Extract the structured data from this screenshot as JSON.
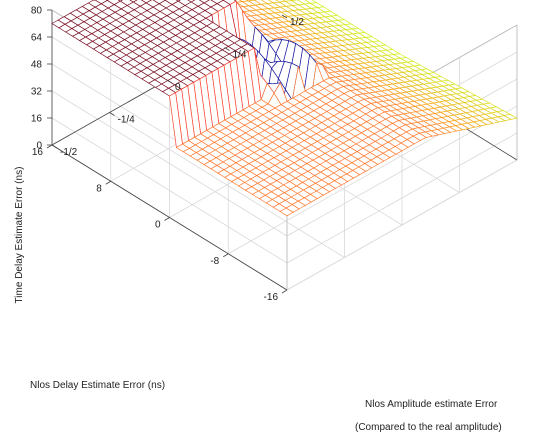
{
  "chart_data": {
    "type": "surface",
    "title": "",
    "xlabel": "Nlos Amplitude estimate Error",
    "xlabel_line2": "(Compared to the real amplitude)",
    "ylabel": "Nlos Delay Estimate Error (ns)",
    "zlabel": "Time Delay Estimate Error (ns)",
    "xlim": [
      -0.5,
      0.5
    ],
    "ylim": [
      -16,
      16
    ],
    "zlim": [
      0,
      80
    ],
    "x_ticks": [
      "-1/2",
      "-1/4",
      "0",
      "1/4",
      "1/2"
    ],
    "y_ticks": [
      "-16",
      "-8",
      "0",
      "8",
      "16"
    ],
    "z_ticks": [
      "0",
      "16",
      "32",
      "48",
      "64",
      "80"
    ],
    "grid": true,
    "colormap": "hot",
    "regions": [
      {
        "description": "high plateau",
        "x_range": [
          -0.5,
          0.0
        ],
        "y_range": [
          0,
          16
        ],
        "z": 72
      },
      {
        "description": "middle plateau",
        "x_range": [
          -0.5,
          0.5
        ],
        "y_range": [
          -16,
          0
        ],
        "z": 44
      },
      {
        "description": "sloped region to low values",
        "x_range": [
          0.1,
          0.5
        ],
        "y_range": [
          0,
          16
        ],
        "z_from": 44,
        "z_to": 20
      },
      {
        "description": "oscillating region near zero",
        "x_range": [
          -0.1,
          0.1
        ],
        "y_range": [
          -2,
          6
        ],
        "z_min": 28,
        "z_max": 56
      }
    ]
  }
}
